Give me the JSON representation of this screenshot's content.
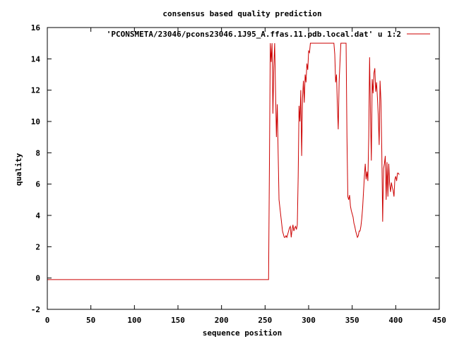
{
  "chart_data": {
    "type": "line",
    "title": "consensus based quality prediction",
    "xlabel": "sequence position",
    "ylabel": "quality",
    "xlim": [
      0,
      450
    ],
    "ylim": [
      -2,
      16
    ],
    "xticks": [
      "0",
      "50",
      "100",
      "150",
      "200",
      "250",
      "300",
      "350",
      "400",
      "450"
    ],
    "yticks": [
      "-2",
      "0",
      "2",
      "4",
      "6",
      "8",
      "10",
      "12",
      "14",
      "16"
    ],
    "legend_position": "top-right",
    "grid": false,
    "series": [
      {
        "name": "'PCONSMETA/23046/pcons23046.1J95_A.ffas.11.pdb.local.dat' u 1:2",
        "color": "#cc0000",
        "points": [
          [
            0,
            -0.1
          ],
          [
            253,
            -0.1
          ],
          [
            254,
            -0.1
          ],
          [
            255,
            7.3
          ],
          [
            256,
            15
          ],
          [
            257,
            13.8
          ],
          [
            258,
            15
          ],
          [
            259,
            10.5
          ],
          [
            260,
            13.5
          ],
          [
            261,
            15
          ],
          [
            262,
            12
          ],
          [
            263,
            9
          ],
          [
            264,
            11.1
          ],
          [
            265,
            8
          ],
          [
            266,
            5
          ],
          [
            267,
            4.5
          ],
          [
            268,
            4
          ],
          [
            269,
            3.5
          ],
          [
            270,
            3
          ],
          [
            271,
            2.8
          ],
          [
            272,
            2.6
          ],
          [
            273,
            2.6
          ],
          [
            274,
            2.7
          ],
          [
            275,
            2.6
          ],
          [
            276,
            2.8
          ],
          [
            277,
            3
          ],
          [
            278,
            3.2
          ],
          [
            279,
            3.3
          ],
          [
            280,
            2.6
          ],
          [
            281,
            3.1
          ],
          [
            282,
            3.4
          ],
          [
            283,
            3
          ],
          [
            284,
            3.2
          ],
          [
            285,
            3.3
          ],
          [
            286,
            3.1
          ],
          [
            287,
            3.4
          ],
          [
            288,
            6.5
          ],
          [
            289,
            11
          ],
          [
            290,
            10
          ],
          [
            291,
            12
          ],
          [
            292,
            7.8
          ],
          [
            293,
            11.5
          ],
          [
            294,
            12.6
          ],
          [
            295,
            11.2
          ],
          [
            296,
            13
          ],
          [
            297,
            12.5
          ],
          [
            298,
            13.7
          ],
          [
            299,
            13.3
          ],
          [
            300,
            14.5
          ],
          [
            301,
            14.4
          ],
          [
            302,
            15
          ],
          [
            310,
            15
          ],
          [
            320,
            15
          ],
          [
            329,
            15
          ],
          [
            330,
            14.3
          ],
          [
            331,
            12.5
          ],
          [
            332,
            13
          ],
          [
            333,
            11
          ],
          [
            334,
            9.5
          ],
          [
            335,
            12.5
          ],
          [
            336,
            13.8
          ],
          [
            337,
            15
          ],
          [
            343,
            15
          ],
          [
            344,
            9
          ],
          [
            345,
            5.2
          ],
          [
            346,
            5
          ],
          [
            347,
            5.3
          ],
          [
            348,
            4.6
          ],
          [
            349,
            4.3
          ],
          [
            350,
            4.1
          ],
          [
            351,
            3.9
          ],
          [
            352,
            3.5
          ],
          [
            353,
            3.3
          ],
          [
            354,
            3
          ],
          [
            355,
            2.8
          ],
          [
            356,
            2.6
          ],
          [
            357,
            2.7
          ],
          [
            358,
            3
          ],
          [
            359,
            3
          ],
          [
            360,
            3.3
          ],
          [
            361,
            3.8
          ],
          [
            362,
            4.5
          ],
          [
            363,
            5.5
          ],
          [
            364,
            6.5
          ],
          [
            365,
            7.3
          ],
          [
            366,
            6.3
          ],
          [
            367,
            6.8
          ],
          [
            368,
            6.2
          ],
          [
            369,
            9
          ],
          [
            370,
            14.1
          ],
          [
            371,
            10.5
          ],
          [
            372,
            7.5
          ],
          [
            373,
            12.7
          ],
          [
            374,
            11.8
          ],
          [
            375,
            13.1
          ],
          [
            376,
            13.4
          ],
          [
            377,
            11.9
          ],
          [
            378,
            12.5
          ],
          [
            379,
            11.5
          ],
          [
            380,
            10.3
          ],
          [
            381,
            8.5
          ],
          [
            382,
            12.6
          ],
          [
            383,
            11.3
          ],
          [
            384,
            8.1
          ],
          [
            385,
            3.6
          ],
          [
            386,
            7
          ],
          [
            387,
            7.3
          ],
          [
            388,
            7.8
          ],
          [
            389,
            5
          ],
          [
            390,
            7.4
          ],
          [
            391,
            5.2
          ],
          [
            392,
            7.3
          ],
          [
            393,
            6
          ],
          [
            394,
            5.5
          ],
          [
            395,
            6.1
          ],
          [
            396,
            5.8
          ],
          [
            397,
            5.6
          ],
          [
            398,
            5.2
          ],
          [
            399,
            6.3
          ],
          [
            400,
            6.5
          ],
          [
            401,
            6.2
          ],
          [
            402,
            6.7
          ],
          [
            403,
            6.7
          ],
          [
            404,
            6.6
          ]
        ]
      }
    ]
  }
}
